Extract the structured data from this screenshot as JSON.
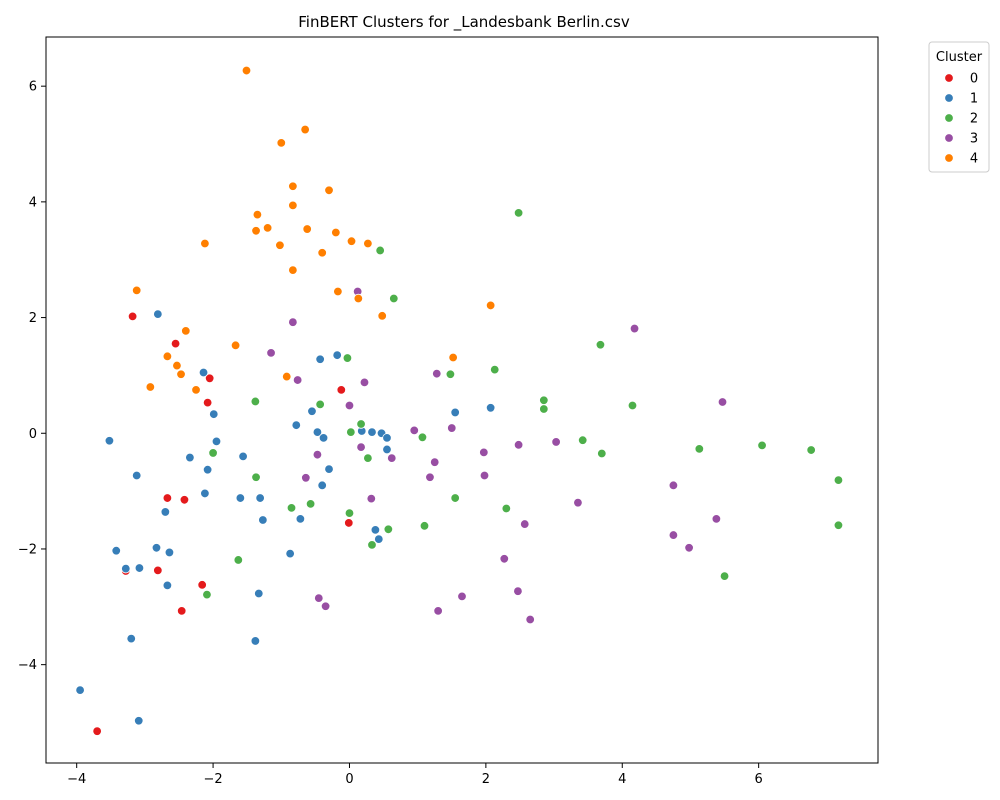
{
  "chart_data": {
    "type": "scatter",
    "title": "FinBERT Clusters for _Landesbank Berlin.csv",
    "xlabel": "",
    "ylabel": "",
    "xlim": [
      -4.45,
      7.75
    ],
    "ylim": [
      -5.7,
      6.85
    ],
    "xticks": [
      -4,
      -2,
      0,
      2,
      4,
      6
    ],
    "yticks": [
      -4,
      -2,
      0,
      2,
      4,
      6
    ],
    "xtick_labels": [
      "−4",
      "−2",
      "0",
      "2",
      "4",
      "6"
    ],
    "ytick_labels": [
      "−4",
      "−2",
      "0",
      "2",
      "4",
      "6"
    ],
    "grid": false,
    "legend": {
      "title": "Cluster",
      "placement": "outside-top-right"
    },
    "series": [
      {
        "name": "0",
        "color": "#e41a1c",
        "points": [
          [
            -3.18,
            2.02
          ],
          [
            -2.55,
            1.55
          ],
          [
            -2.05,
            0.95
          ],
          [
            -2.08,
            0.53
          ],
          [
            -0.12,
            0.75
          ],
          [
            -2.67,
            -1.12
          ],
          [
            -2.42,
            -1.15
          ],
          [
            -0.01,
            -1.55
          ],
          [
            -2.81,
            -2.37
          ],
          [
            -3.28,
            -2.38
          ],
          [
            -2.16,
            -2.62
          ],
          [
            -2.46,
            -3.07
          ],
          [
            -3.7,
            -5.15
          ]
        ]
      },
      {
        "name": "1",
        "color": "#377eb8",
        "points": [
          [
            -2.81,
            2.06
          ],
          [
            -2.14,
            1.05
          ],
          [
            -0.18,
            1.35
          ],
          [
            -0.43,
            1.28
          ],
          [
            -1.99,
            0.33
          ],
          [
            -0.55,
            0.38
          ],
          [
            -0.78,
            0.14
          ],
          [
            -0.47,
            0.02
          ],
          [
            -0.38,
            -0.08
          ],
          [
            0.18,
            0.04
          ],
          [
            0.33,
            0.02
          ],
          [
            0.47,
            0.0
          ],
          [
            0.55,
            -0.08
          ],
          [
            1.55,
            0.36
          ],
          [
            2.07,
            0.44
          ],
          [
            0.55,
            -0.28
          ],
          [
            -3.52,
            -0.13
          ],
          [
            -1.95,
            -0.14
          ],
          [
            -3.12,
            -0.73
          ],
          [
            -2.34,
            -0.42
          ],
          [
            -1.56,
            -0.4
          ],
          [
            -2.08,
            -0.63
          ],
          [
            -0.3,
            -0.62
          ],
          [
            -0.4,
            -0.9
          ],
          [
            -2.7,
            -1.36
          ],
          [
            -2.12,
            -1.04
          ],
          [
            -1.6,
            -1.12
          ],
          [
            -1.31,
            -1.12
          ],
          [
            -1.27,
            -1.5
          ],
          [
            -0.72,
            -1.48
          ],
          [
            0.38,
            -1.67
          ],
          [
            0.43,
            -1.83
          ],
          [
            -2.83,
            -1.98
          ],
          [
            -2.64,
            -2.06
          ],
          [
            -0.87,
            -2.08
          ],
          [
            -3.42,
            -2.03
          ],
          [
            -3.28,
            -2.34
          ],
          [
            -3.08,
            -2.33
          ],
          [
            -2.67,
            -2.63
          ],
          [
            -1.33,
            -2.77
          ],
          [
            -3.2,
            -3.55
          ],
          [
            -1.38,
            -3.59
          ],
          [
            -3.95,
            -4.44
          ],
          [
            -3.09,
            -4.97
          ]
        ]
      },
      {
        "name": "2",
        "color": "#4daf4a",
        "points": [
          [
            2.48,
            3.81
          ],
          [
            0.45,
            3.16
          ],
          [
            0.65,
            2.33
          ],
          [
            -0.03,
            1.3
          ],
          [
            1.48,
            1.02
          ],
          [
            2.13,
            1.1
          ],
          [
            3.68,
            1.53
          ],
          [
            -1.38,
            0.55
          ],
          [
            -0.43,
            0.5
          ],
          [
            2.85,
            0.57
          ],
          [
            2.85,
            0.42
          ],
          [
            4.15,
            0.48
          ],
          [
            0.17,
            0.16
          ],
          [
            0.02,
            0.02
          ],
          [
            1.07,
            -0.07
          ],
          [
            3.42,
            -0.12
          ],
          [
            5.13,
            -0.27
          ],
          [
            6.05,
            -0.21
          ],
          [
            6.77,
            -0.29
          ],
          [
            -2.0,
            -0.34
          ],
          [
            0.27,
            -0.43
          ],
          [
            3.7,
            -0.35
          ],
          [
            -1.37,
            -0.76
          ],
          [
            7.17,
            -0.81
          ],
          [
            -0.85,
            -1.29
          ],
          [
            -0.57,
            -1.22
          ],
          [
            1.55,
            -1.12
          ],
          [
            2.3,
            -1.3
          ],
          [
            0.0,
            -1.38
          ],
          [
            1.1,
            -1.6
          ],
          [
            0.57,
            -1.66
          ],
          [
            7.17,
            -1.59
          ],
          [
            0.33,
            -1.93
          ],
          [
            -1.63,
            -2.19
          ],
          [
            5.5,
            -2.47
          ],
          [
            -2.09,
            -2.79
          ]
        ]
      },
      {
        "name": "3",
        "color": "#984ea3",
        "points": [
          [
            0.12,
            2.45
          ],
          [
            -0.83,
            1.92
          ],
          [
            4.18,
            1.81
          ],
          [
            -1.15,
            1.39
          ],
          [
            -0.76,
            0.92
          ],
          [
            0.22,
            0.88
          ],
          [
            1.28,
            1.03
          ],
          [
            0.0,
            0.48
          ],
          [
            5.47,
            0.54
          ],
          [
            0.95,
            0.05
          ],
          [
            1.5,
            0.09
          ],
          [
            0.17,
            -0.24
          ],
          [
            2.48,
            -0.2
          ],
          [
            3.03,
            -0.15
          ],
          [
            -0.47,
            -0.37
          ],
          [
            0.62,
            -0.43
          ],
          [
            1.25,
            -0.5
          ],
          [
            1.97,
            -0.33
          ],
          [
            1.98,
            -0.73
          ],
          [
            1.18,
            -0.76
          ],
          [
            -0.64,
            -0.77
          ],
          [
            4.75,
            -0.9
          ],
          [
            0.32,
            -1.13
          ],
          [
            3.35,
            -1.2
          ],
          [
            5.38,
            -1.48
          ],
          [
            2.57,
            -1.57
          ],
          [
            4.75,
            -1.76
          ],
          [
            4.98,
            -1.98
          ],
          [
            2.27,
            -2.17
          ],
          [
            -0.45,
            -2.85
          ],
          [
            -0.35,
            -2.99
          ],
          [
            2.47,
            -2.73
          ],
          [
            1.65,
            -2.82
          ],
          [
            1.3,
            -3.07
          ],
          [
            2.65,
            -3.22
          ]
        ]
      },
      {
        "name": "4",
        "color": "#ff7f00",
        "points": [
          [
            -1.51,
            6.27
          ],
          [
            -0.65,
            5.25
          ],
          [
            -1.0,
            5.02
          ],
          [
            -0.83,
            4.27
          ],
          [
            -0.3,
            4.2
          ],
          [
            -0.83,
            3.94
          ],
          [
            -1.35,
            3.78
          ],
          [
            -1.2,
            3.55
          ],
          [
            -1.37,
            3.5
          ],
          [
            -0.62,
            3.53
          ],
          [
            -0.2,
            3.47
          ],
          [
            0.03,
            3.32
          ],
          [
            0.27,
            3.28
          ],
          [
            -2.12,
            3.28
          ],
          [
            -1.02,
            3.25
          ],
          [
            -0.4,
            3.12
          ],
          [
            -0.83,
            2.82
          ],
          [
            -3.12,
            2.47
          ],
          [
            -0.17,
            2.45
          ],
          [
            0.13,
            2.33
          ],
          [
            2.07,
            2.21
          ],
          [
            0.48,
            2.03
          ],
          [
            -2.4,
            1.77
          ],
          [
            -1.67,
            1.52
          ],
          [
            -2.67,
            1.33
          ],
          [
            1.52,
            1.31
          ],
          [
            -2.53,
            1.17
          ],
          [
            -2.47,
            1.02
          ],
          [
            -0.92,
            0.98
          ],
          [
            -2.92,
            0.8
          ],
          [
            -2.25,
            0.75
          ]
        ]
      }
    ]
  }
}
